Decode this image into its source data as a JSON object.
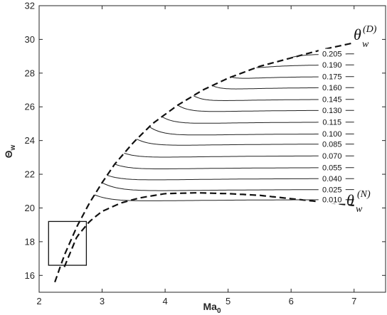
{
  "chart_data": {
    "type": "line",
    "title": "",
    "xlabel": "Ma",
    "xlabel_sub": "0",
    "ylabel": "Θ",
    "ylabel_sub": "w",
    "xlim": [
      2,
      7.5
    ],
    "ylim": [
      15,
      32
    ],
    "xticks": [
      2,
      3,
      4,
      5,
      6,
      7
    ],
    "yticks": [
      16,
      18,
      20,
      22,
      24,
      26,
      28,
      30,
      32
    ],
    "grid": false,
    "detachment_boundary": {
      "label": "θ",
      "label_sub": "w",
      "label_sup": "(D)",
      "style": "dashed",
      "x": [
        2.25,
        2.4,
        2.6,
        2.8,
        3.0,
        3.2,
        3.5,
        3.8,
        4.2,
        4.6,
        5.0,
        5.5,
        6.0,
        6.5,
        7.0
      ],
      "y": [
        15.6,
        17.2,
        18.9,
        20.3,
        21.5,
        22.6,
        23.9,
        25.0,
        26.1,
        27.0,
        27.7,
        28.4,
        28.9,
        29.4,
        29.8
      ]
    },
    "neumann_boundary": {
      "label": "θ",
      "label_sub": "w",
      "label_sup": "(N)",
      "style": "dashed",
      "x": [
        2.4,
        2.6,
        2.8,
        3.0,
        3.3,
        3.6,
        4.0,
        4.5,
        5.0,
        5.5,
        6.0,
        6.5,
        7.0
      ],
      "y": [
        16.5,
        18.3,
        19.2,
        19.8,
        20.3,
        20.6,
        20.85,
        20.9,
        20.85,
        20.75,
        20.55,
        20.35,
        20.15
      ]
    },
    "contours": [
      {
        "level": "0.010",
        "x_start": 2.88,
        "y_end": 20.5
      },
      {
        "level": "0.025",
        "x_start": 3.0,
        "y_end": 21.1
      },
      {
        "level": "0.040",
        "x_start": 3.08,
        "y_end": 21.75
      },
      {
        "level": "0.055",
        "x_start": 3.2,
        "y_end": 22.4
      },
      {
        "level": "0.070",
        "x_start": 3.35,
        "y_end": 23.1
      },
      {
        "level": "0.085",
        "x_start": 3.55,
        "y_end": 23.8
      },
      {
        "level": "0.100",
        "x_start": 3.75,
        "y_end": 24.4
      },
      {
        "level": "0.115",
        "x_start": 3.95,
        "y_end": 25.1
      },
      {
        "level": "0.130",
        "x_start": 4.2,
        "y_end": 25.8
      },
      {
        "level": "0.145",
        "x_start": 4.45,
        "y_end": 26.45
      },
      {
        "level": "0.160",
        "x_start": 4.75,
        "y_end": 27.15
      },
      {
        "level": "0.175",
        "x_start": 5.05,
        "y_end": 27.8
      },
      {
        "level": "0.190",
        "x_start": 5.45,
        "y_end": 28.5
      },
      {
        "level": "0.205",
        "x_start": 5.95,
        "y_end": 29.15
      }
    ],
    "inset_box": {
      "x": [
        2.15,
        2.75
      ],
      "y": [
        16.6,
        19.2
      ]
    }
  }
}
